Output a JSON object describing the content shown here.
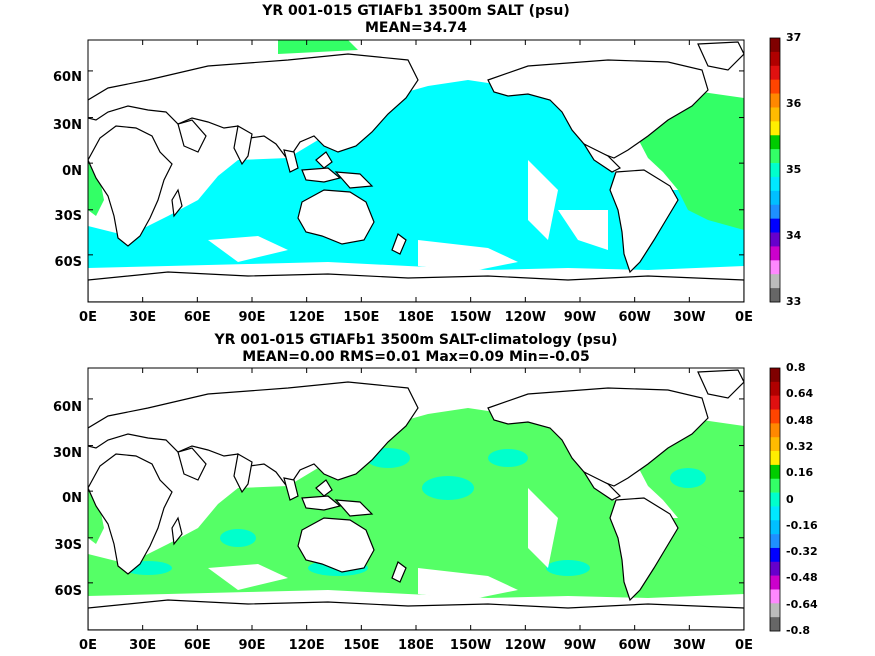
{
  "panels": [
    {
      "title_line1": "YR 001-015 GTIAFb1 3500m SALT (psu)",
      "title_line2": "MEAN=34.74",
      "colorbar_labels": [
        "37",
        "36",
        "35",
        "34",
        "33"
      ],
      "colorbar_colors": [
        "#7f0000",
        "#b00000",
        "#e01010",
        "#ff4400",
        "#ff8800",
        "#ffbb00",
        "#ffee00",
        "#00cc00",
        "#33ff66",
        "#00ffcc",
        "#00e8ff",
        "#00c0ff",
        "#1e90ff",
        "#0000ff",
        "#6600cc",
        "#cc00cc",
        "#ff88ff",
        "#bbbbbb",
        "#666666"
      ]
    },
    {
      "title_line1": "YR 001-015 GTIAFb1 3500m SALT-climatology (psu)",
      "title_line2": "MEAN=0.00   RMS=0.01   Max=0.09   Min=-0.05",
      "colorbar_labels": [
        "0.8",
        "0.64",
        "0.48",
        "0.32",
        "0.16",
        "0",
        "-0.16",
        "-0.32",
        "-0.48",
        "-0.64",
        "-0.8"
      ],
      "colorbar_colors": [
        "#7f0000",
        "#b00000",
        "#e01010",
        "#ff4400",
        "#ff8800",
        "#ffbb00",
        "#ffee00",
        "#00cc00",
        "#33ff66",
        "#00ffcc",
        "#00e8ff",
        "#00c0ff",
        "#1e90ff",
        "#0000ff",
        "#6600cc",
        "#cc00cc",
        "#ff88ff",
        "#bbbbbb",
        "#666666"
      ]
    }
  ],
  "lat_labels": [
    "60N",
    "30N",
    "0N",
    "30S",
    "60S"
  ],
  "lon_labels": [
    "0E",
    "30E",
    "60E",
    "90E",
    "120E",
    "150E",
    "180E",
    "150W",
    "120W",
    "90W",
    "60W",
    "30W",
    "0E"
  ],
  "colors": {
    "salt_cyan": "#00ffff",
    "salt_green": "#33ff66",
    "anom_green": "#55ff66",
    "anom_cyan": "#00ffcc",
    "coast": "#000000"
  }
}
